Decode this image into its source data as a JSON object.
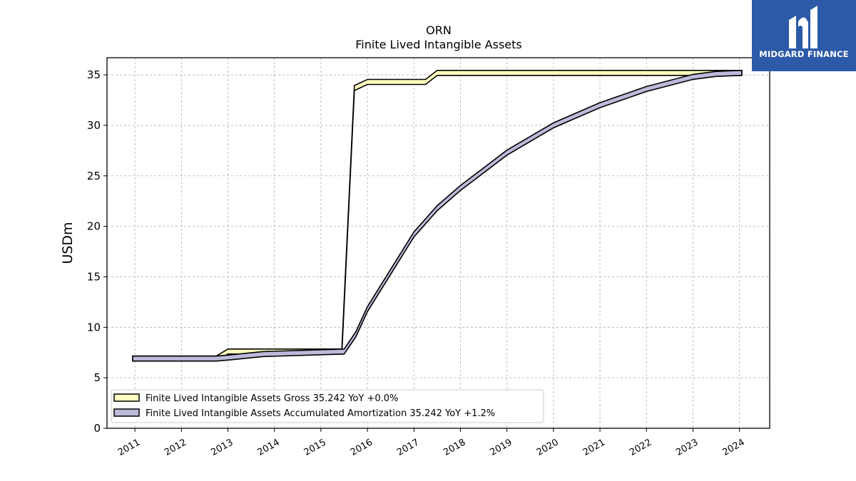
{
  "branding": {
    "name": "MIDGARD FINANCE",
    "bg_color": "#2c5aa8"
  },
  "chart_data": {
    "type": "area",
    "title": "ORN",
    "subtitle": "Finite Lived Intangible Assets",
    "ylabel": "USDm",
    "xlabel": "",
    "ylim": [
      0,
      36.7
    ],
    "xlim": [
      2010.4,
      2024.65
    ],
    "yticks": [
      0,
      5,
      10,
      15,
      20,
      25,
      30,
      35
    ],
    "xticks": [
      2011,
      2012,
      2013,
      2014,
      2015,
      2016,
      2017,
      2018,
      2019,
      2020,
      2021,
      2022,
      2023,
      2024
    ],
    "grid": true,
    "legend_position": "lower-left",
    "series": [
      {
        "name": "Finite Lived Intangible Assets Gross",
        "legend_label": "Finite Lived Intangible Assets Gross  35.242 YoY +0.0%",
        "color": "#ffffbf",
        "points": [
          [
            2010.95,
            6.9
          ],
          [
            2012.75,
            6.9
          ],
          [
            2013.0,
            7.6
          ],
          [
            2014.0,
            7.6
          ],
          [
            2015.45,
            7.6
          ],
          [
            2015.72,
            33.7
          ],
          [
            2016.0,
            34.3
          ],
          [
            2017.25,
            34.3
          ],
          [
            2017.5,
            35.2
          ],
          [
            2024.05,
            35.2
          ]
        ]
      },
      {
        "name": "Finite Lived Intangible Assets Accumulated Amortization",
        "legend_label": "Finite Lived Intangible Assets Accumulated Amortization  35.242 YoY +1.2%",
        "color": "#bcbad9",
        "points": [
          [
            2010.95,
            6.9
          ],
          [
            2012.75,
            6.9
          ],
          [
            2013.0,
            7.0
          ],
          [
            2013.75,
            7.35
          ],
          [
            2015.5,
            7.6
          ],
          [
            2015.75,
            9.3
          ],
          [
            2016.0,
            11.8
          ],
          [
            2017.0,
            19.2
          ],
          [
            2017.5,
            21.8
          ],
          [
            2018.0,
            23.8
          ],
          [
            2019.0,
            27.3
          ],
          [
            2020.0,
            30.0
          ],
          [
            2021.0,
            32.0
          ],
          [
            2022.0,
            33.6
          ],
          [
            2023.0,
            34.8
          ],
          [
            2023.5,
            35.1
          ],
          [
            2024.05,
            35.2
          ]
        ]
      }
    ]
  }
}
